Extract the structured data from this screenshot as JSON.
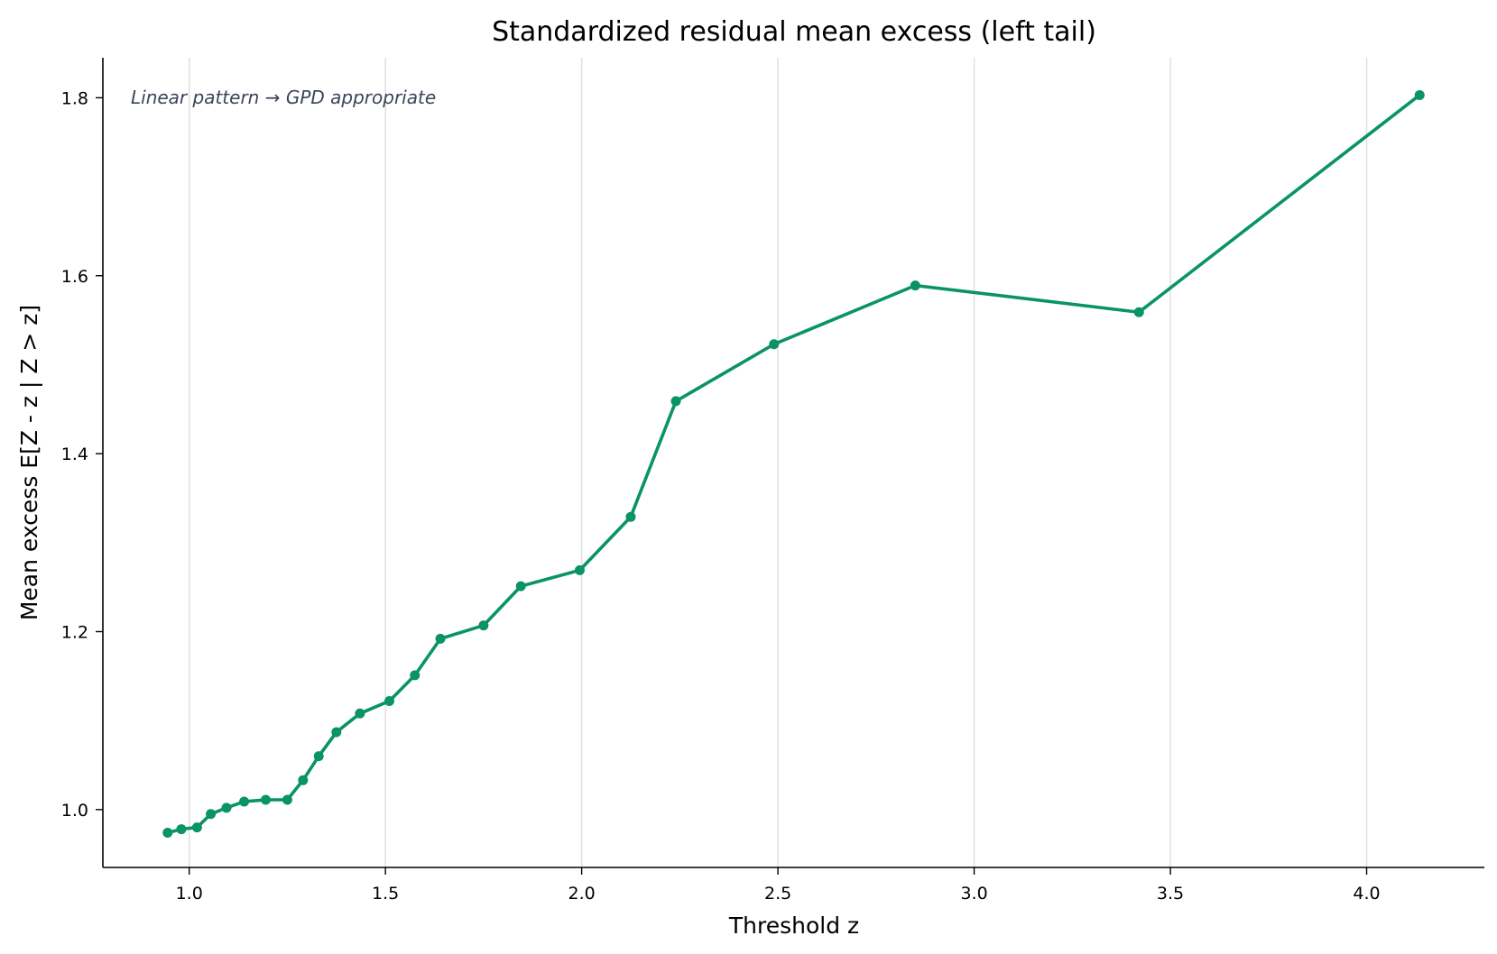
{
  "chart_data": {
    "type": "line",
    "title": "Standardized residual mean excess (left tail)",
    "xlabel": "Threshold z",
    "ylabel": "Mean excess E[Z - z | Z > z]",
    "annotation": "Linear pattern → GPD appropriate",
    "xlim": [
      0.78,
      4.3
    ],
    "ylim": [
      0.935,
      1.845
    ],
    "x_ticks": [
      1.0,
      1.5,
      2.0,
      2.5,
      3.0,
      3.5,
      4.0
    ],
    "x_tick_labels": [
      "1.0",
      "1.5",
      "2.0",
      "2.5",
      "3.0",
      "3.5",
      "4.0"
    ],
    "y_ticks": [
      1.0,
      1.2,
      1.4,
      1.6,
      1.8
    ],
    "y_tick_labels": [
      "1.0",
      "1.2",
      "1.4",
      "1.6",
      "1.8"
    ],
    "grid": "vertical",
    "series": [
      {
        "color": "#0a9464",
        "x": [
          0.945,
          0.98,
          1.02,
          1.055,
          1.095,
          1.14,
          1.195,
          1.25,
          1.29,
          1.33,
          1.375,
          1.435,
          1.51,
          1.575,
          1.64,
          1.75,
          1.845,
          1.995,
          2.125,
          2.24,
          2.49,
          2.85,
          3.42,
          4.135
        ],
        "y": [
          0.974,
          0.978,
          0.98,
          0.995,
          1.002,
          1.009,
          1.011,
          1.011,
          1.033,
          1.06,
          1.087,
          1.108,
          1.122,
          1.151,
          1.192,
          1.207,
          1.251,
          1.269,
          1.329,
          1.459,
          1.523,
          1.589,
          1.559,
          1.803
        ]
      }
    ]
  }
}
